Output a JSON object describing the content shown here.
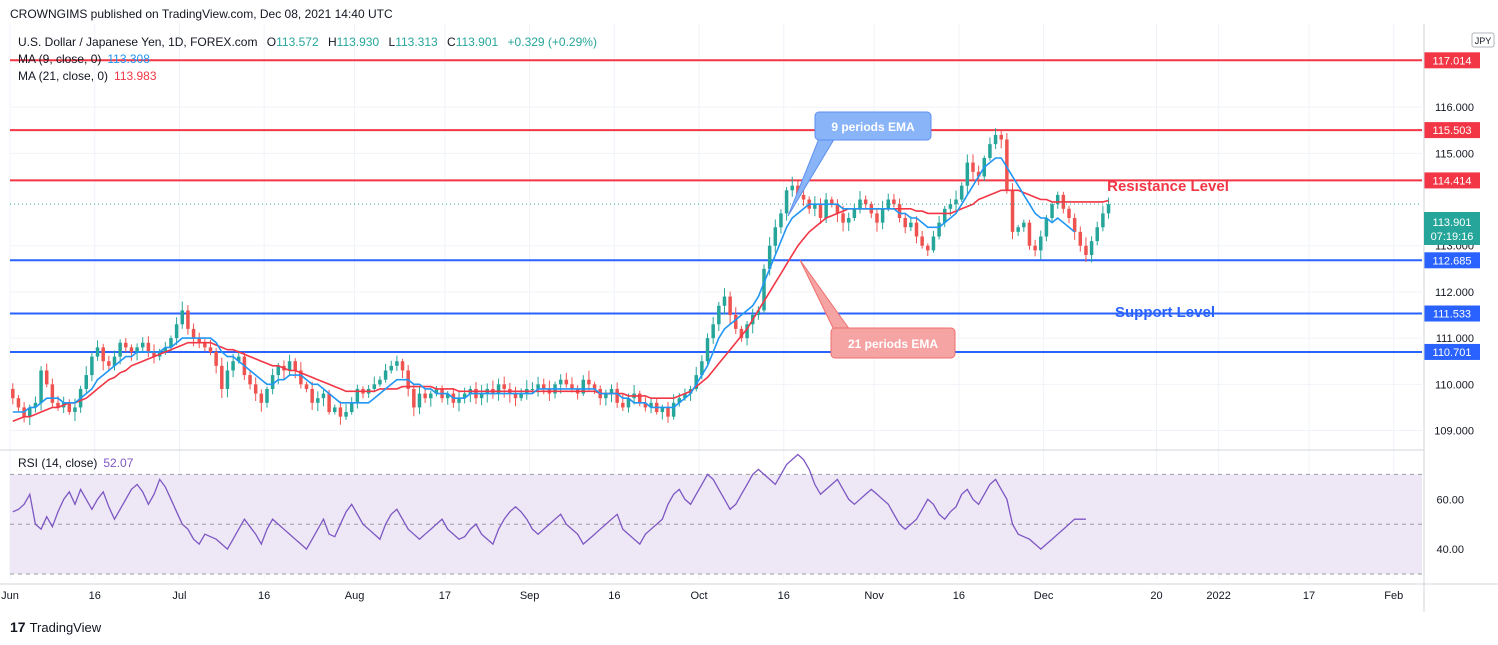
{
  "header": {
    "published": "CROWNGIMS published on TradingView.com, Dec 08, 2021 14:40 UTC"
  },
  "footer": {
    "brand": "TradingView",
    "logo_text": "17"
  },
  "legend": {
    "symbol": "U.S. Dollar / Japanese Yen, 1D, FOREX.com",
    "o_label": "O",
    "o": "113.572",
    "h_label": "H",
    "h": "113.930",
    "l_label": "L",
    "l": "113.313",
    "c_label": "C",
    "c": "113.901",
    "change": "+0.329 (+0.29%)",
    "ma9_label": "MA (9, close, 0)",
    "ma9_value": "113.308",
    "ma21_label": "MA (21, close, 0)",
    "ma21_value": "113.983",
    "rsi_label": "RSI (14, close)",
    "rsi_value": "52.07"
  },
  "currency": "JPY",
  "price_badge": {
    "value": "113.901",
    "countdown": "07:19:16"
  },
  "annotations": {
    "resistance": "Resistance Level",
    "support": "Support Level",
    "ema9": "9 periods EMA",
    "ema21": "21 periods EMA"
  },
  "colors": {
    "up": "#26a69a",
    "down": "#ef5350",
    "ma9": "#2196f3",
    "ma21": "#f23645",
    "resistance": "#f23645",
    "support": "#2962ff",
    "rsi": "#7e57c2",
    "rsi_band": "#ede7f6"
  },
  "chart_data": [
    {
      "type": "candlestick",
      "ylim": [
        108.6,
        117.8
      ],
      "y_ticks": [
        "109.000",
        "110.000",
        "111.000",
        "112.000",
        "113.000",
        "115.000",
        "116.000"
      ],
      "y_tick_values": [
        109,
        110,
        111,
        112,
        113,
        115,
        116
      ],
      "x_ticks": [
        "Jun",
        "16",
        "Jul",
        "16",
        "Aug",
        "17",
        "Sep",
        "16",
        "Oct",
        "16",
        "Nov",
        "16",
        "Dec",
        "20",
        "2022",
        "17",
        "Feb"
      ],
      "x_tick_days": [
        0,
        15,
        30,
        45,
        61,
        77,
        92,
        107,
        122,
        137,
        153,
        168,
        183,
        203,
        214,
        230,
        245
      ],
      "levels": [
        {
          "value": 117.014,
          "label": "117.014",
          "kind": "resistance"
        },
        {
          "value": 115.503,
          "label": "115.503",
          "kind": "resistance"
        },
        {
          "value": 114.414,
          "label": "114.414",
          "kind": "resistance"
        },
        {
          "value": 112.685,
          "label": "112.685",
          "kind": "support"
        },
        {
          "value": 111.533,
          "label": "111.533",
          "kind": "support"
        },
        {
          "value": 110.701,
          "label": "110.701",
          "kind": "support"
        }
      ],
      "close": [
        109.7,
        109.5,
        109.3,
        109.5,
        109.6,
        110.3,
        110.0,
        109.6,
        109.5,
        109.6,
        109.4,
        109.5,
        109.9,
        110.2,
        110.6,
        110.8,
        110.5,
        110.4,
        110.6,
        110.9,
        110.8,
        110.7,
        110.8,
        110.9,
        110.7,
        110.6,
        110.7,
        110.8,
        111.0,
        111.3,
        111.6,
        111.2,
        111.0,
        110.9,
        110.8,
        110.7,
        110.4,
        109.9,
        110.3,
        110.5,
        110.6,
        110.2,
        110.0,
        109.8,
        109.6,
        109.9,
        110.2,
        110.4,
        110.3,
        110.5,
        110.3,
        110.0,
        109.9,
        109.6,
        109.7,
        109.8,
        109.4,
        109.5,
        109.3,
        109.4,
        109.6,
        109.9,
        109.8,
        109.9,
        110.0,
        110.1,
        110.3,
        110.4,
        110.5,
        110.3,
        109.9,
        109.5,
        109.8,
        109.7,
        109.8,
        109.9,
        109.7,
        109.8,
        109.6,
        109.7,
        109.8,
        109.9,
        109.7,
        109.8,
        109.9,
        109.8,
        110.0,
        109.9,
        109.8,
        109.7,
        109.8,
        109.9,
        109.9,
        110.0,
        109.9,
        109.8,
        110.0,
        110.1,
        110.0,
        109.9,
        109.8,
        110.1,
        110.0,
        109.9,
        109.7,
        109.8,
        109.9,
        109.6,
        109.5,
        109.7,
        109.8,
        109.6,
        109.5,
        109.6,
        109.4,
        109.5,
        109.3,
        109.6,
        109.7,
        109.8,
        109.9,
        110.2,
        110.5,
        111.0,
        111.3,
        111.7,
        111.9,
        111.5,
        111.2,
        111.0,
        111.3,
        111.5,
        111.6,
        112.5,
        113.0,
        113.4,
        113.7,
        114.2,
        114.3,
        114.1,
        114.0,
        113.8,
        113.9,
        113.6,
        114.0,
        113.9,
        113.7,
        113.5,
        113.6,
        113.8,
        114.0,
        113.9,
        113.7,
        113.5,
        113.8,
        114.0,
        113.9,
        113.6,
        113.4,
        113.5,
        113.2,
        113.0,
        112.9,
        113.2,
        113.5,
        113.8,
        113.9,
        114.0,
        114.3,
        114.8,
        114.6,
        114.5,
        114.9,
        115.2,
        115.4,
        115.3,
        114.2,
        113.3,
        113.4,
        113.5,
        113.0,
        112.9,
        113.2,
        113.6,
        113.9,
        114.1,
        113.8,
        113.6,
        113.3,
        113.0,
        112.8,
        113.1,
        113.4,
        113.7,
        113.9
      ],
      "ma9": [
        109.4,
        109.4,
        109.4,
        109.5,
        109.5,
        109.6,
        109.7,
        109.7,
        109.7,
        109.6,
        109.6,
        109.6,
        109.7,
        109.8,
        109.9,
        110.1,
        110.2,
        110.3,
        110.4,
        110.5,
        110.6,
        110.6,
        110.7,
        110.7,
        110.7,
        110.7,
        110.7,
        110.8,
        110.8,
        110.9,
        111.0,
        111.0,
        111.0,
        111.0,
        111.0,
        111.0,
        110.9,
        110.7,
        110.6,
        110.6,
        110.5,
        110.4,
        110.3,
        110.2,
        110.1,
        110.0,
        110.0,
        110.1,
        110.1,
        110.2,
        110.2,
        110.2,
        110.1,
        110.0,
        110.0,
        109.9,
        109.8,
        109.7,
        109.6,
        109.6,
        109.6,
        109.6,
        109.6,
        109.6,
        109.7,
        109.8,
        109.9,
        110.0,
        110.1,
        110.1,
        110.1,
        110.0,
        110.0,
        109.9,
        109.9,
        109.8,
        109.8,
        109.8,
        109.7,
        109.7,
        109.7,
        109.8,
        109.8,
        109.8,
        109.8,
        109.8,
        109.8,
        109.8,
        109.8,
        109.8,
        109.8,
        109.8,
        109.8,
        109.9,
        109.9,
        109.9,
        109.9,
        109.9,
        109.9,
        109.9,
        109.9,
        109.9,
        109.9,
        109.9,
        109.8,
        109.8,
        109.8,
        109.8,
        109.7,
        109.7,
        109.6,
        109.6,
        109.6,
        109.5,
        109.5,
        109.5,
        109.5,
        109.5,
        109.6,
        109.7,
        109.8,
        110.0,
        110.2,
        110.4,
        110.7,
        111.0,
        111.2,
        111.3,
        111.4,
        111.5,
        111.6,
        111.7,
        111.9,
        112.2,
        112.5,
        112.8,
        113.1,
        113.4,
        113.6,
        113.7,
        113.8,
        113.9,
        113.9,
        113.9,
        113.9,
        113.9,
        113.9,
        113.8,
        113.8,
        113.8,
        113.8,
        113.8,
        113.8,
        113.8,
        113.8,
        113.8,
        113.8,
        113.7,
        113.7,
        113.6,
        113.6,
        113.5,
        113.4,
        113.4,
        113.4,
        113.5,
        113.6,
        113.7,
        113.9,
        114.1,
        114.3,
        114.5,
        114.7,
        114.8,
        114.9,
        114.9,
        114.7,
        114.5,
        114.3,
        114.1,
        113.9,
        113.7,
        113.6,
        113.6,
        113.5,
        113.6,
        113.5,
        113.4,
        113.3
      ],
      "ma21": [
        109.2,
        109.25,
        109.3,
        109.3,
        109.35,
        109.4,
        109.45,
        109.5,
        109.5,
        109.55,
        109.6,
        109.6,
        109.65,
        109.7,
        109.8,
        109.9,
        110.0,
        110.1,
        110.15,
        110.25,
        110.3,
        110.4,
        110.45,
        110.5,
        110.55,
        110.6,
        110.65,
        110.7,
        110.75,
        110.8,
        110.85,
        110.9,
        110.9,
        110.9,
        110.9,
        110.9,
        110.85,
        110.8,
        110.75,
        110.75,
        110.7,
        110.65,
        110.6,
        110.55,
        110.5,
        110.45,
        110.4,
        110.4,
        110.35,
        110.3,
        110.3,
        110.25,
        110.2,
        110.15,
        110.1,
        110.05,
        110.0,
        109.95,
        109.9,
        109.85,
        109.85,
        109.85,
        109.85,
        109.85,
        109.85,
        109.9,
        109.9,
        109.9,
        109.9,
        109.95,
        109.95,
        109.95,
        109.95,
        109.95,
        109.95,
        109.9,
        109.9,
        109.9,
        109.9,
        109.85,
        109.85,
        109.85,
        109.85,
        109.85,
        109.85,
        109.85,
        109.85,
        109.85,
        109.85,
        109.85,
        109.85,
        109.85,
        109.85,
        109.85,
        109.85,
        109.85,
        109.85,
        109.85,
        109.85,
        109.85,
        109.85,
        109.85,
        109.85,
        109.85,
        109.8,
        109.8,
        109.8,
        109.8,
        109.8,
        109.75,
        109.75,
        109.75,
        109.75,
        109.7,
        109.7,
        109.7,
        109.7,
        109.7,
        109.75,
        109.8,
        109.85,
        109.95,
        110.05,
        110.15,
        110.3,
        110.45,
        110.6,
        110.75,
        110.9,
        111.05,
        111.2,
        111.4,
        111.6,
        111.8,
        112.0,
        112.2,
        112.4,
        112.6,
        112.8,
        113.0,
        113.15,
        113.3,
        113.4,
        113.5,
        113.6,
        113.65,
        113.7,
        113.75,
        113.8,
        113.8,
        113.8,
        113.8,
        113.8,
        113.8,
        113.8,
        113.8,
        113.8,
        113.8,
        113.8,
        113.8,
        113.75,
        113.75,
        113.7,
        113.7,
        113.7,
        113.7,
        113.7,
        113.75,
        113.8,
        113.85,
        113.9,
        114.0,
        114.05,
        114.1,
        114.15,
        114.2,
        114.2,
        114.2,
        114.2,
        114.15,
        114.1,
        114.05,
        114.0,
        114.0,
        113.95,
        113.95,
        113.95,
        113.95,
        113.95,
        113.95,
        113.95,
        113.95,
        113.95,
        113.95,
        113.98
      ]
    },
    {
      "type": "line",
      "ylim": [
        28,
        79
      ],
      "y_ticks": [
        "40.00",
        "60.00"
      ],
      "y_tick_values": [
        40,
        60
      ],
      "band": [
        30,
        70
      ],
      "rsi": [
        55,
        56,
        58,
        62,
        50,
        48,
        53,
        49,
        55,
        60,
        63,
        58,
        64,
        60,
        56,
        60,
        63,
        57,
        52,
        56,
        60,
        64,
        66,
        63,
        58,
        62,
        68,
        65,
        60,
        55,
        50,
        48,
        44,
        42,
        46,
        45,
        44,
        42,
        40,
        44,
        48,
        52,
        49,
        46,
        42,
        48,
        52,
        50,
        48,
        46,
        44,
        42,
        40,
        44,
        48,
        52,
        46,
        45,
        50,
        55,
        58,
        54,
        50,
        48,
        46,
        44,
        50,
        54,
        56,
        52,
        48,
        46,
        44,
        46,
        48,
        50,
        52,
        48,
        46,
        44,
        45,
        48,
        50,
        46,
        44,
        42,
        48,
        52,
        55,
        57,
        55,
        52,
        48,
        46,
        48,
        50,
        52,
        54,
        50,
        48,
        46,
        42,
        44,
        46,
        48,
        50,
        52,
        54,
        48,
        46,
        44,
        42,
        46,
        48,
        50,
        52,
        58,
        62,
        64,
        60,
        58,
        62,
        66,
        70,
        68,
        64,
        60,
        56,
        58,
        62,
        66,
        70,
        72,
        70,
        68,
        66,
        70,
        74,
        76,
        78,
        76,
        72,
        66,
        62,
        64,
        66,
        68,
        64,
        60,
        58,
        60,
        62,
        64,
        62,
        60,
        58,
        54,
        50,
        48,
        50,
        52,
        56,
        60,
        58,
        54,
        52,
        55,
        57,
        62,
        64,
        60,
        58,
        62,
        66,
        68,
        64,
        60,
        50,
        46,
        45,
        44,
        42,
        40,
        42,
        44,
        46,
        48,
        50,
        52,
        52,
        52
      ]
    }
  ]
}
